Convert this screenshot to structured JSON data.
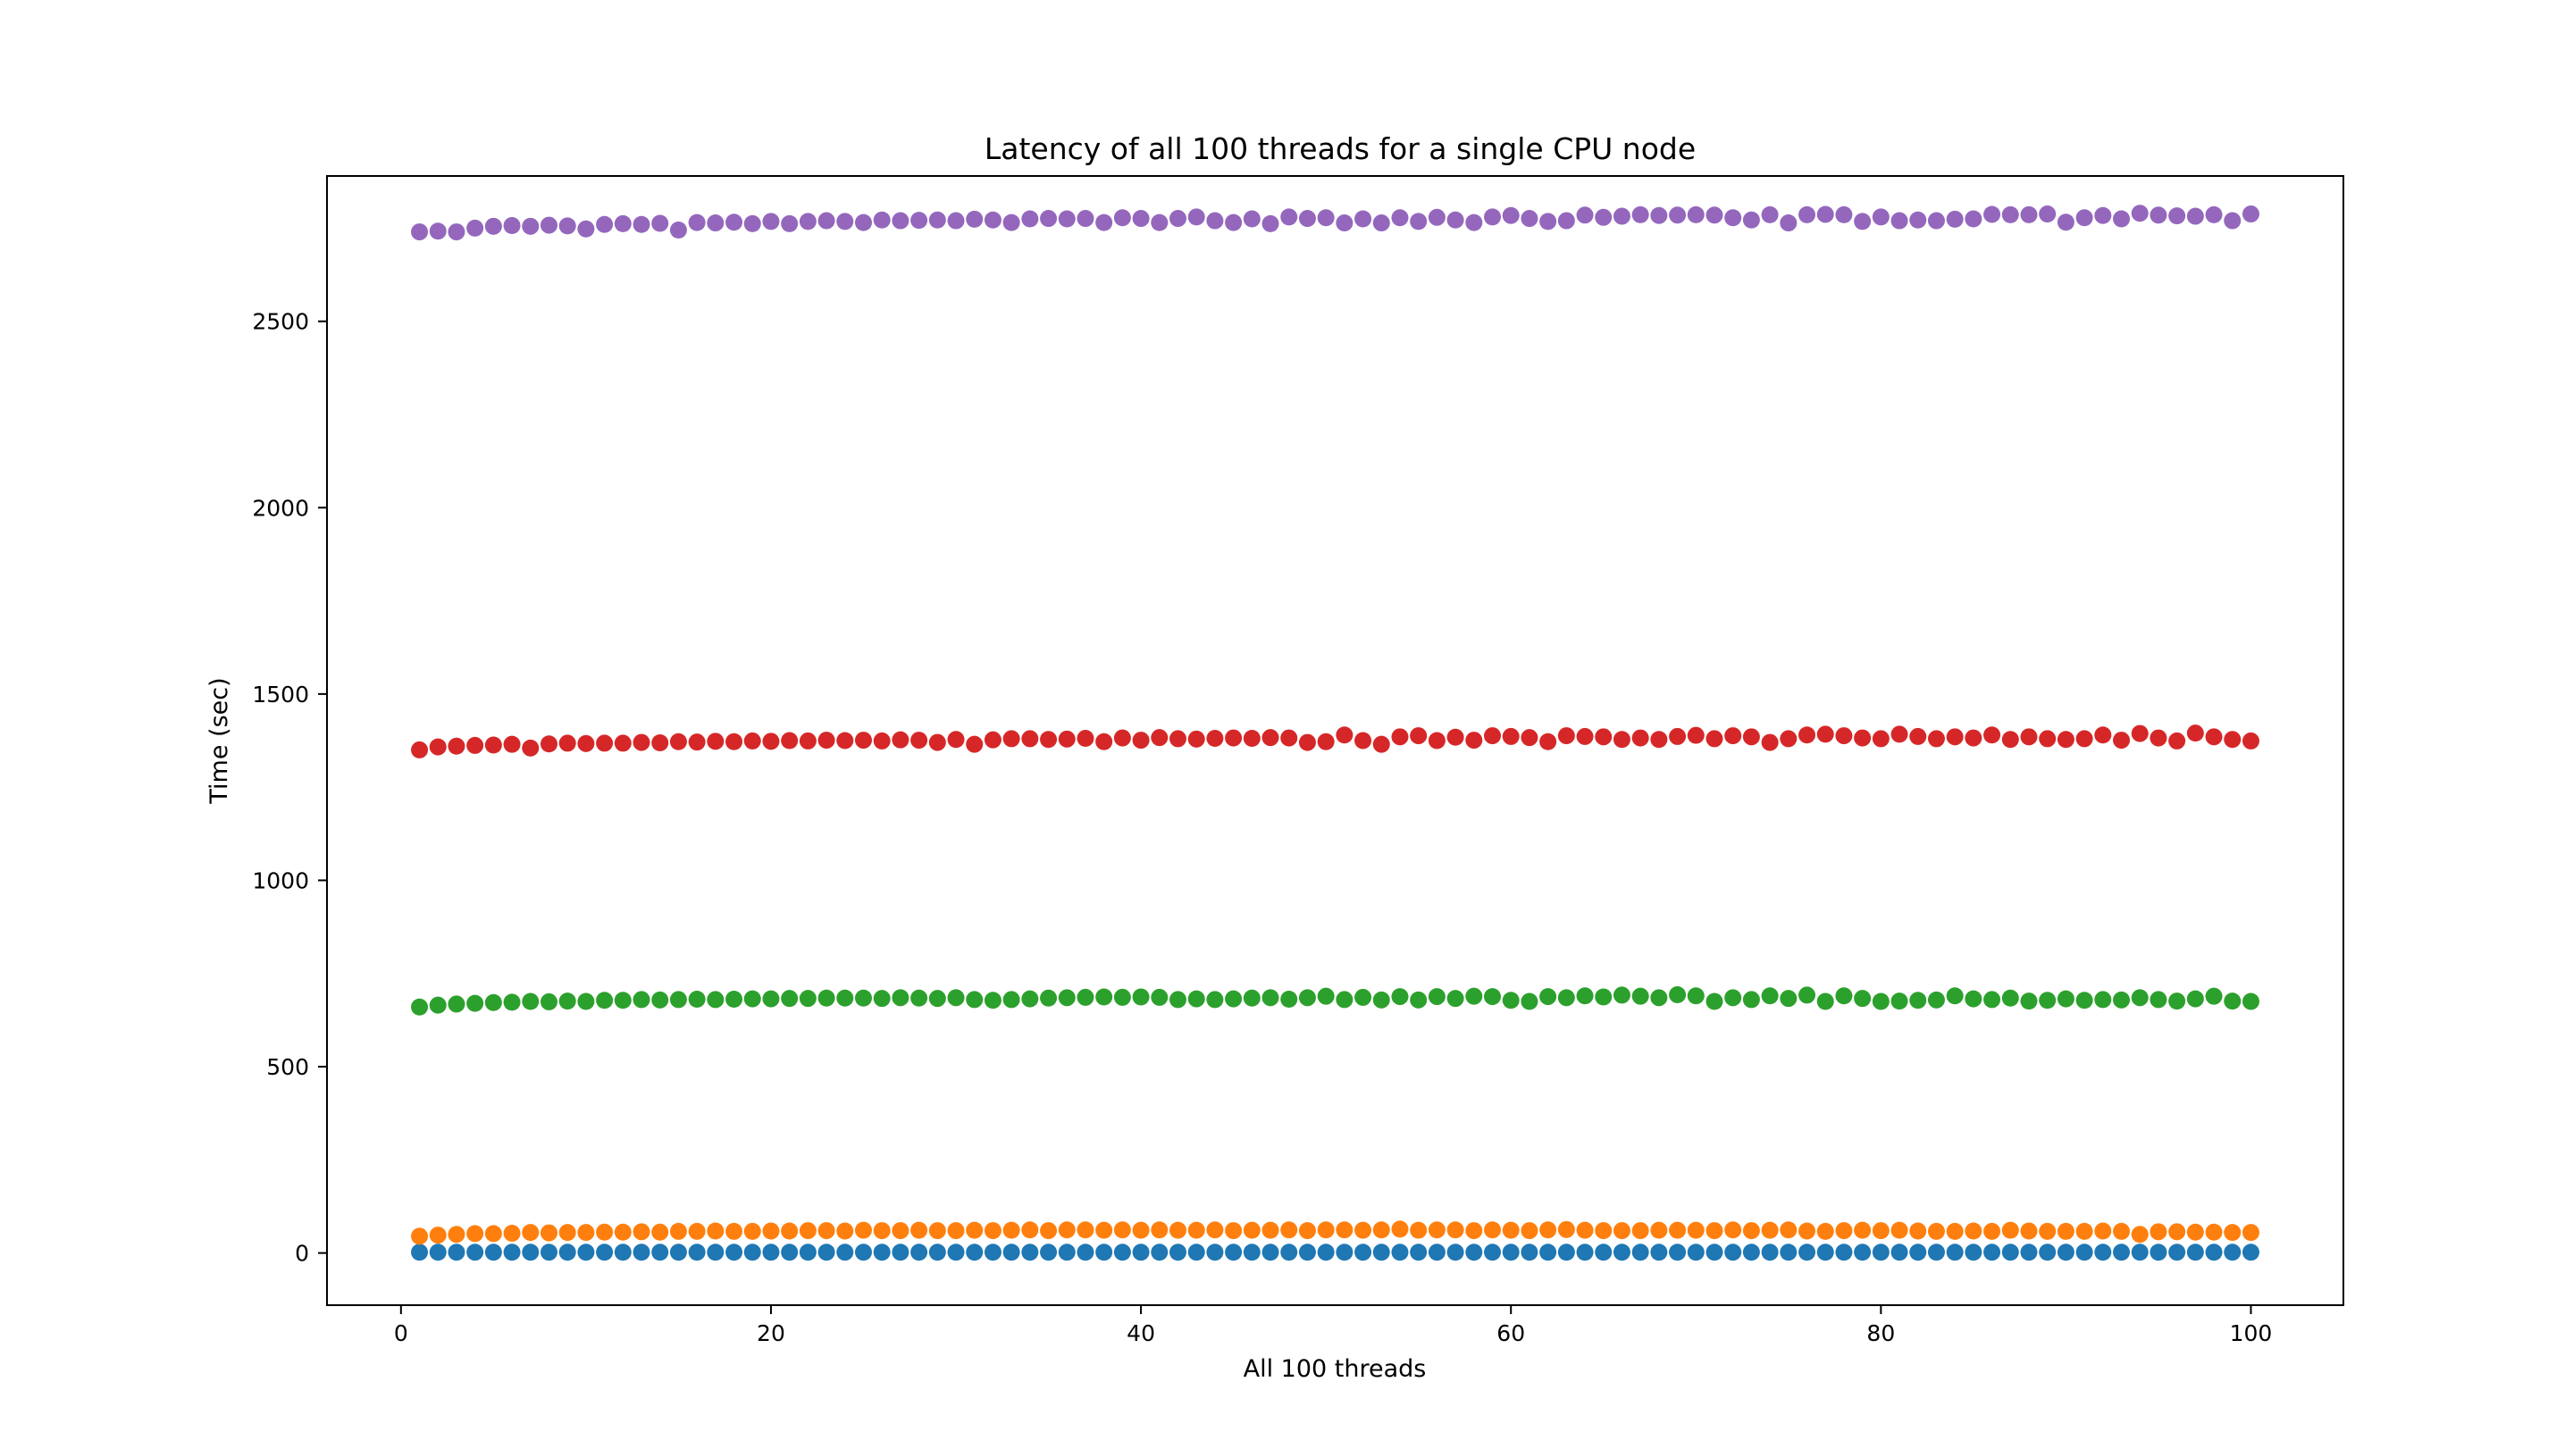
{
  "chart_data": {
    "type": "scatter",
    "title": "Latency of all 100 threads for a single CPU node",
    "xlabel": "All 100 threads",
    "ylabel": "Time (sec)",
    "xlim": [
      -4,
      105
    ],
    "ylim": [
      -140,
      2890
    ],
    "xticks": [
      0,
      20,
      40,
      60,
      80,
      100
    ],
    "yticks": [
      0,
      500,
      1000,
      1500,
      2000,
      2500
    ],
    "grid": false,
    "legend": "none",
    "x": [
      1,
      2,
      3,
      4,
      5,
      6,
      7,
      8,
      9,
      10,
      11,
      12,
      13,
      14,
      15,
      16,
      17,
      18,
      19,
      20,
      21,
      22,
      23,
      24,
      25,
      26,
      27,
      28,
      29,
      30,
      31,
      32,
      33,
      34,
      35,
      36,
      37,
      38,
      39,
      40,
      41,
      42,
      43,
      44,
      45,
      46,
      47,
      48,
      49,
      50,
      51,
      52,
      53,
      54,
      55,
      56,
      57,
      58,
      59,
      60,
      61,
      62,
      63,
      64,
      65,
      66,
      67,
      68,
      69,
      70,
      71,
      72,
      73,
      74,
      75,
      76,
      77,
      78,
      79,
      80,
      81,
      82,
      83,
      84,
      85,
      86,
      87,
      88,
      89,
      90,
      91,
      92,
      93,
      94,
      95,
      96,
      97,
      98,
      99,
      100
    ],
    "series": [
      {
        "color": "#1f77b4",
        "values": [
          2,
          2,
          2,
          2,
          2,
          2,
          2,
          2,
          2,
          2,
          2,
          2,
          2,
          2,
          2,
          2,
          2,
          2,
          2,
          2,
          2,
          2,
          2,
          2,
          2,
          2,
          2,
          2,
          2,
          2,
          2,
          2,
          2,
          2,
          2,
          2,
          2,
          2,
          2,
          2,
          2,
          2,
          2,
          2,
          2,
          2,
          2,
          2,
          2,
          2,
          2,
          2,
          2,
          2,
          2,
          2,
          2,
          2,
          2,
          2,
          2,
          2,
          2,
          2,
          2,
          2,
          2,
          2,
          2,
          2,
          2,
          2,
          2,
          2,
          2,
          2,
          2,
          2,
          2,
          2,
          2,
          2,
          2,
          2,
          2,
          2,
          2,
          2,
          2,
          2,
          2,
          2,
          2,
          2,
          2,
          2,
          2,
          2,
          2,
          2
        ]
      },
      {
        "color": "#ff7f0e",
        "values": [
          45,
          48,
          50,
          52,
          52,
          53,
          55,
          54,
          55,
          55,
          56,
          56,
          57,
          56,
          58,
          58,
          59,
          58,
          58,
          59,
          59,
          60,
          60,
          59,
          61,
          60,
          60,
          61,
          60,
          60,
          61,
          60,
          61,
          62,
          60,
          62,
          62,
          61,
          62,
          61,
          62,
          61,
          61,
          62,
          60,
          61,
          61,
          62,
          60,
          62,
          62,
          61,
          62,
          64,
          61,
          62,
          62,
          60,
          62,
          61,
          60,
          62,
          63,
          61,
          60,
          60,
          60,
          61,
          61,
          61,
          60,
          62,
          60,
          61,
          62,
          59,
          58,
          60,
          61,
          60,
          61,
          59,
          58,
          58,
          59,
          58,
          61,
          59,
          58,
          58,
          58,
          59,
          58,
          50,
          57,
          57,
          56,
          56,
          55,
          55
        ]
      },
      {
        "color": "#2ca02c",
        "values": [
          660,
          665,
          668,
          670,
          672,
          673,
          675,
          674,
          676,
          675,
          678,
          678,
          680,
          679,
          680,
          681,
          680,
          681,
          682,
          682,
          683,
          683,
          684,
          684,
          684,
          683,
          685,
          684,
          683,
          685,
          680,
          678,
          680,
          682,
          684,
          685,
          686,
          687,
          686,
          687,
          686,
          680,
          682,
          680,
          682,
          684,
          685,
          681,
          685,
          689,
          680,
          686,
          679,
          688,
          679,
          688,
          683,
          689,
          688,
          678,
          675,
          688,
          685,
          690,
          687,
          692,
          689,
          685,
          693,
          690,
          675,
          685,
          680,
          690,
          683,
          692,
          675,
          690,
          683,
          675,
          676,
          678,
          679,
          690,
          682,
          680,
          684,
          676,
          678,
          682,
          678,
          680,
          679,
          685,
          680,
          676,
          682,
          689,
          676,
          675
        ]
      },
      {
        "color": "#d62728",
        "values": [
          1350,
          1358,
          1360,
          1362,
          1363,
          1365,
          1355,
          1366,
          1368,
          1367,
          1368,
          1368,
          1370,
          1369,
          1372,
          1371,
          1373,
          1372,
          1374,
          1373,
          1375,
          1374,
          1376,
          1375,
          1376,
          1374,
          1377,
          1376,
          1370,
          1378,
          1365,
          1377,
          1380,
          1380,
          1378,
          1379,
          1381,
          1372,
          1382,
          1376,
          1383,
          1380,
          1379,
          1381,
          1382,
          1381,
          1383,
          1382,
          1370,
          1372,
          1390,
          1375,
          1365,
          1385,
          1388,
          1375,
          1384,
          1376,
          1388,
          1386,
          1383,
          1372,
          1388,
          1386,
          1385,
          1378,
          1382,
          1378,
          1386,
          1389,
          1380,
          1388,
          1385,
          1370,
          1380,
          1390,
          1392,
          1388,
          1382,
          1380,
          1392,
          1386,
          1380,
          1385,
          1382,
          1390,
          1378,
          1385,
          1380,
          1378,
          1380,
          1390,
          1376,
          1394,
          1382,
          1374,
          1395,
          1385,
          1378,
          1374
        ]
      },
      {
        "color": "#9467bd",
        "values": [
          2740,
          2742,
          2740,
          2750,
          2755,
          2757,
          2755,
          2758,
          2756,
          2748,
          2760,
          2762,
          2760,
          2763,
          2745,
          2765,
          2764,
          2766,
          2762,
          2768,
          2762,
          2768,
          2770,
          2768,
          2765,
          2772,
          2770,
          2771,
          2772,
          2770,
          2774,
          2772,
          2765,
          2775,
          2776,
          2775,
          2776,
          2765,
          2778,
          2776,
          2765,
          2776,
          2780,
          2770,
          2765,
          2775,
          2762,
          2780,
          2776,
          2778,
          2764,
          2775,
          2764,
          2778,
          2768,
          2779,
          2772,
          2765,
          2780,
          2784,
          2776,
          2768,
          2770,
          2785,
          2779,
          2782,
          2786,
          2784,
          2785,
          2786,
          2785,
          2778,
          2772,
          2786,
          2764,
          2786,
          2787,
          2786,
          2768,
          2780,
          2770,
          2772,
          2770,
          2774,
          2775,
          2787,
          2786,
          2786,
          2788,
          2766,
          2778,
          2784,
          2775,
          2790,
          2785,
          2783,
          2782,
          2786,
          2770,
          2788
        ]
      }
    ]
  }
}
